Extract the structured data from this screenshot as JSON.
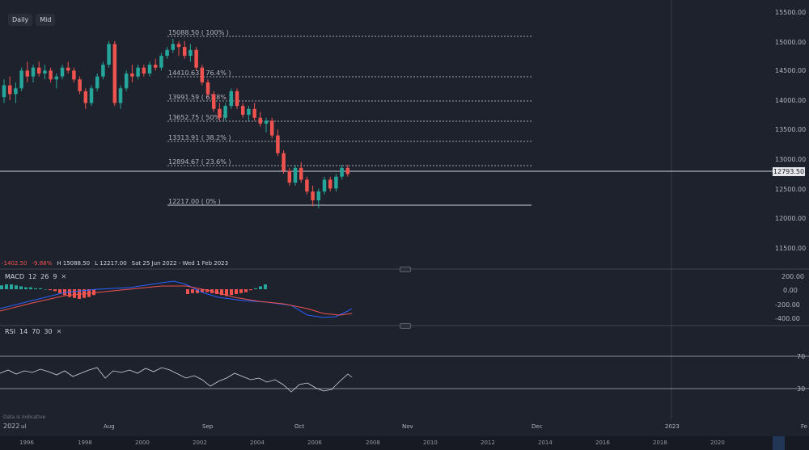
{
  "toolbar": {
    "interval": "Daily",
    "price_source": "Mid"
  },
  "ohlc": {
    "change": "-1402.50",
    "change_pct": "-9.88%",
    "high": "H 15088.50",
    "low": "L 12217.00",
    "range": "Sat 25 Jun 2022 - Wed 1 Feb 2023"
  },
  "price_axis": [
    "15500.00",
    "15000.00",
    "14500.00",
    "14000.00",
    "13500.00",
    "13000.00",
    "12500.00",
    "12000.00",
    "11500.00"
  ],
  "last_price": "12793.50",
  "fib_labels": [
    "15088.50 ( 100% )",
    "14410.63 ( 76.4% )",
    "13991.59 ( 61.8% )",
    "13652.75 ( 50% )",
    "13313.91 ( 38.2% )",
    "12894.67 ( 23.6% )",
    "12217.00 ( 0% )"
  ],
  "macd": {
    "name": "MACD",
    "p1": "12",
    "p2": "26",
    "p3": "9",
    "axis": [
      "200.00",
      "0.00",
      "-200.00",
      "-400.00"
    ]
  },
  "rsi": {
    "name": "RSI",
    "p1": "14",
    "p2": "70",
    "p3": "30",
    "axis": [
      "70",
      "30"
    ]
  },
  "time_axis": [
    "2022",
    "ul",
    "Aug",
    "Sep",
    "Oct",
    "Nov",
    "Dec",
    "2023",
    "Fe"
  ],
  "disclaimer": "Data is indicative",
  "navigator_years": [
    "1996",
    "1998",
    "2000",
    "2002",
    "2004",
    "2006",
    "2008",
    "2010",
    "2012",
    "2014",
    "2016",
    "2018",
    "2020"
  ],
  "chart_data": {
    "type": "candlestick",
    "y_range": [
      11200,
      15600
    ],
    "candles_ohlc": [
      [
        14100,
        14400,
        14000,
        14300
      ],
      [
        14300,
        14450,
        14050,
        14150
      ],
      [
        14150,
        14350,
        14000,
        14250
      ],
      [
        14250,
        14600,
        14200,
        14550
      ],
      [
        14550,
        14700,
        14350,
        14450
      ],
      [
        14450,
        14650,
        14350,
        14600
      ],
      [
        14600,
        14700,
        14450,
        14500
      ],
      [
        14500,
        14650,
        14400,
        14550
      ],
      [
        14550,
        14600,
        14350,
        14400
      ],
      [
        14400,
        14500,
        14250,
        14450
      ],
      [
        14450,
        14650,
        14400,
        14600
      ],
      [
        14600,
        14700,
        14500,
        14550
      ],
      [
        14550,
        14600,
        14350,
        14400
      ],
      [
        14400,
        14450,
        14150,
        14200
      ],
      [
        14200,
        14250,
        13900,
        14000
      ],
      [
        14000,
        14300,
        13950,
        14250
      ],
      [
        14250,
        14500,
        14200,
        14450
      ],
      [
        14450,
        14700,
        14400,
        14650
      ],
      [
        14650,
        15050,
        14600,
        15000
      ],
      [
        15000,
        15050,
        13950,
        14000
      ],
      [
        14000,
        14300,
        13900,
        14250
      ],
      [
        14250,
        14550,
        14200,
        14500
      ],
      [
        14500,
        14650,
        14350,
        14450
      ],
      [
        14450,
        14650,
        14400,
        14600
      ],
      [
        14600,
        14650,
        14450,
        14500
      ],
      [
        14500,
        14700,
        14450,
        14650
      ],
      [
        14650,
        14750,
        14550,
        14600
      ],
      [
        14600,
        14850,
        14550,
        14800
      ],
      [
        14800,
        14950,
        14750,
        14900
      ],
      [
        14900,
        15088,
        14850,
        15000
      ],
      [
        15000,
        15050,
        14800,
        14950
      ],
      [
        14950,
        15050,
        14750,
        14800
      ],
      [
        14800,
        15000,
        14700,
        14900
      ],
      [
        14900,
        14950,
        14550,
        14600
      ],
      [
        14600,
        14650,
        14300,
        14350
      ],
      [
        14350,
        14400,
        14100,
        14150
      ],
      [
        14150,
        14200,
        13850,
        13900
      ],
      [
        13900,
        14000,
        13700,
        13750
      ],
      [
        13750,
        14000,
        13700,
        13950
      ],
      [
        13950,
        14250,
        13900,
        14200
      ],
      [
        14200,
        14250,
        13900,
        13950
      ],
      [
        13950,
        14000,
        13750,
        13800
      ],
      [
        13800,
        13950,
        13700,
        13900
      ],
      [
        13900,
        14000,
        13700,
        13750
      ],
      [
        13750,
        13850,
        13600,
        13650
      ],
      [
        13650,
        13750,
        13500,
        13700
      ],
      [
        13700,
        13750,
        13400,
        13450
      ],
      [
        13450,
        13550,
        13100,
        13150
      ],
      [
        13150,
        13200,
        12800,
        12850
      ],
      [
        12850,
        12900,
        12600,
        12650
      ],
      [
        12650,
        12950,
        12600,
        12900
      ],
      [
        12900,
        13000,
        12650,
        12700
      ],
      [
        12700,
        12750,
        12450,
        12500
      ],
      [
        12500,
        12600,
        12250,
        12350
      ],
      [
        12350,
        12550,
        12217,
        12500
      ],
      [
        12500,
        12750,
        12450,
        12700
      ],
      [
        12700,
        12750,
        12500,
        12550
      ],
      [
        12550,
        12800,
        12500,
        12750
      ],
      [
        12750,
        12950,
        12700,
        12900
      ],
      [
        12900,
        12950,
        12750,
        12793
      ]
    ]
  }
}
